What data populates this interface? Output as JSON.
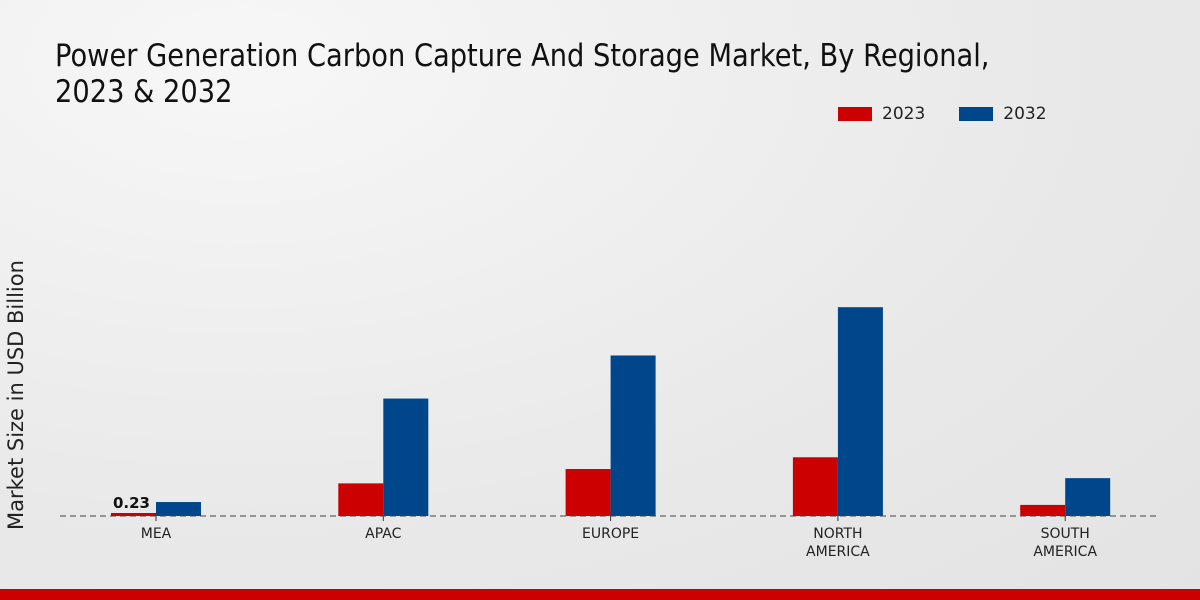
{
  "chart_data": {
    "type": "bar",
    "title": "Power Generation Carbon Capture And Storage Market, By Regional, 2023 & 2032",
    "xlabel": "",
    "ylabel": "Market Size in USD Billion",
    "categories": [
      "MEA",
      "APAC",
      "EUROPE",
      "NORTH AMERICA",
      "SOUTH AMERICA"
    ],
    "series": [
      {
        "name": "2023",
        "color": "#cc0000",
        "values": [
          0.23,
          2.5,
          3.6,
          4.5,
          0.85
        ]
      },
      {
        "name": "2032",
        "color": "#00468b",
        "values": [
          1.07,
          9.0,
          12.3,
          16.0,
          2.9
        ]
      }
    ],
    "data_labels": [
      {
        "series": "2023",
        "category": "MEA",
        "text": "0.23"
      }
    ],
    "ylim": [
      0,
      20
    ],
    "grid": false,
    "legend_position": "top-right"
  }
}
